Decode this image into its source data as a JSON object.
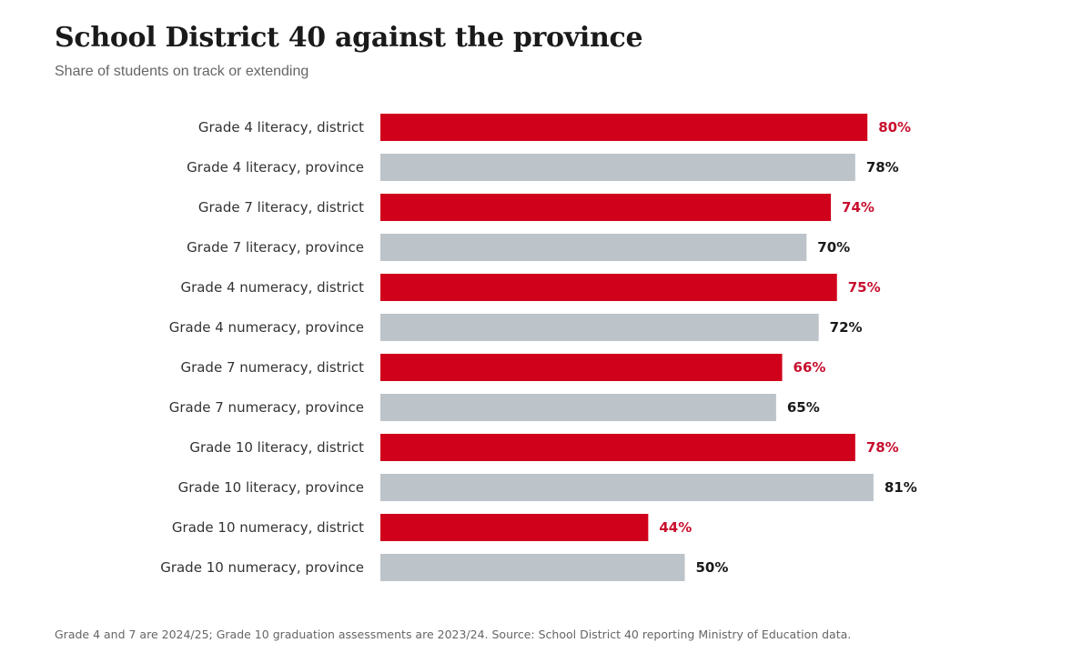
{
  "title": "School District 40 against the province",
  "subtitle": "Share of students on track or extending",
  "footnote": "Grade 4 and 7 are 2024/25; Grade 10 graduation assessments are 2023/24. Source: School District 40 reporting Ministry of Education data.",
  "colors": {
    "district": "#d0021b",
    "province": "#bcc3c9",
    "district_label": "#c8102e",
    "province_label": "#1a1a1a"
  },
  "chart_data": {
    "type": "bar",
    "orientation": "horizontal",
    "xlim": [
      0,
      100
    ],
    "value_suffix": "%",
    "categories": [
      "Grade 4 literacy, district",
      "Grade 4 literacy, province",
      "Grade 7 literacy, district",
      "Grade 7 literacy, province",
      "Grade 4 numeracy, district",
      "Grade 4 numeracy, province",
      "Grade 7 numeracy, district",
      "Grade 7 numeracy, province",
      "Grade 10 literacy, district",
      "Grade 10 literacy, province",
      "Grade 10 numeracy, district",
      "Grade 10 numeracy, province"
    ],
    "values": [
      80,
      78,
      74,
      70,
      75,
      72,
      66,
      65,
      78,
      81,
      44,
      50
    ],
    "groups": [
      "district",
      "province",
      "district",
      "province",
      "district",
      "province",
      "district",
      "province",
      "district",
      "province",
      "district",
      "province"
    ]
  }
}
